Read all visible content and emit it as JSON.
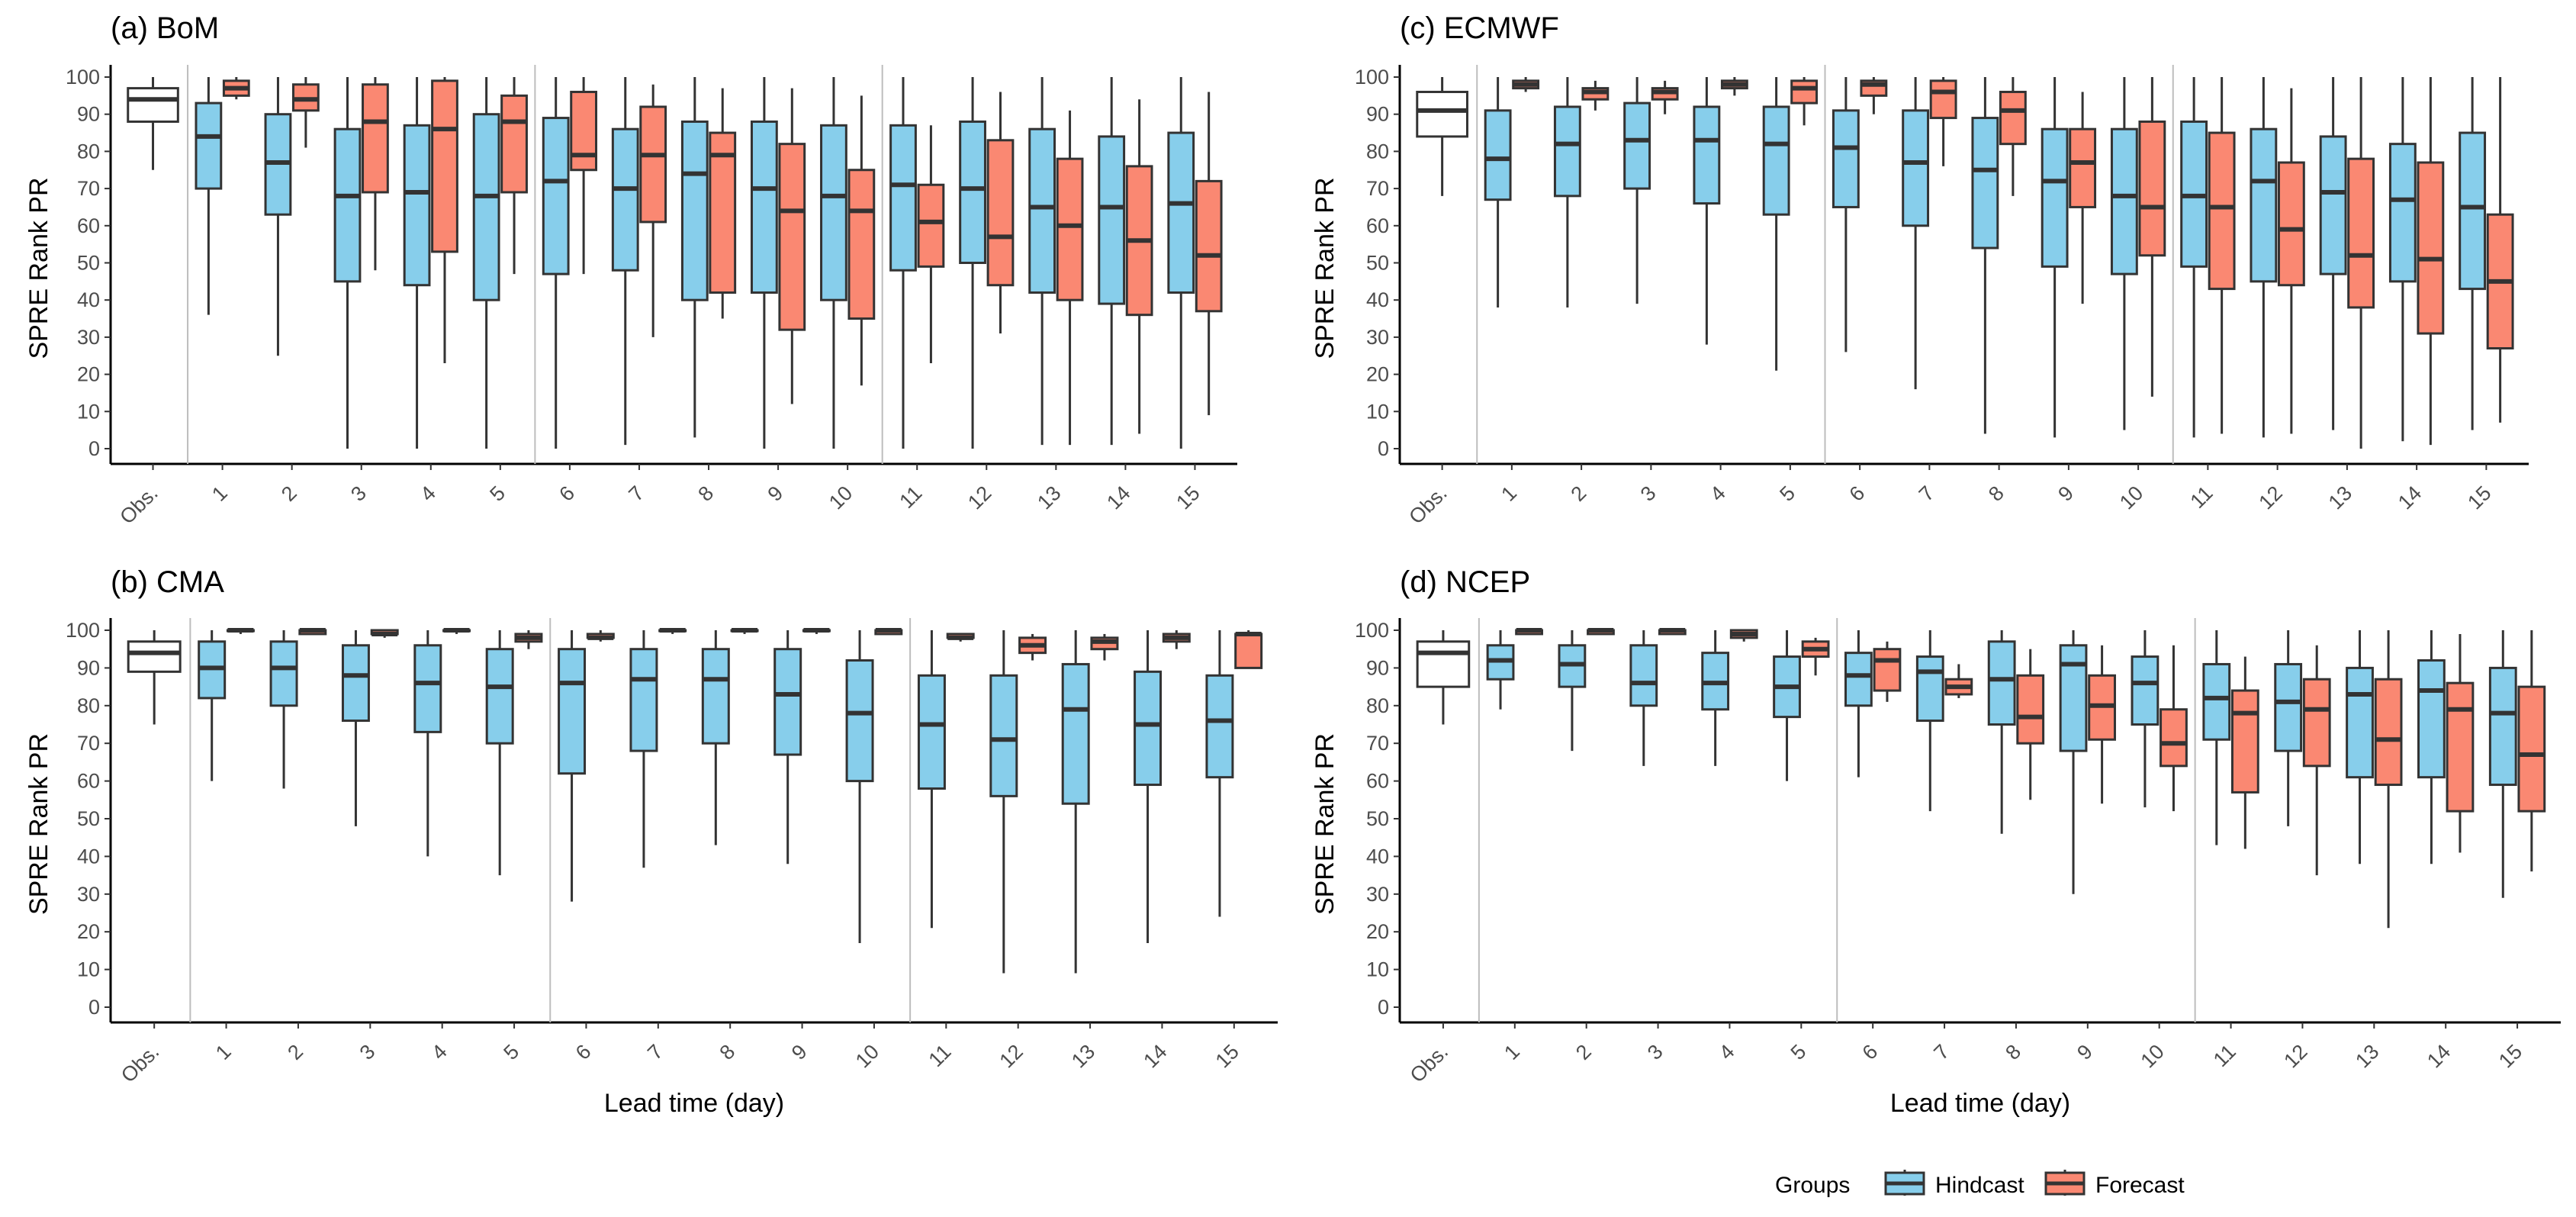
{
  "colors": {
    "hindcast": "#87CEEB",
    "forecast": "#FA8872",
    "obs": "#FFFFFF",
    "stroke": "#333333",
    "separator": "#BDBDBD"
  },
  "shared": {
    "categories": [
      "Obs.",
      "1",
      "2",
      "3",
      "4",
      "5",
      "6",
      "7",
      "8",
      "9",
      "10",
      "11",
      "12",
      "13",
      "14",
      "15"
    ],
    "yticks": [
      "0",
      "10",
      "20",
      "30",
      "40",
      "50",
      "60",
      "70",
      "80",
      "90",
      "100"
    ],
    "ylabel": "SPRE Rank PR",
    "xlabel": "Lead time (day)",
    "legend_title": "Groups",
    "legend_items": [
      "Hindcast",
      "Forecast"
    ]
  },
  "chart_data": [
    {
      "type": "boxplot",
      "title": "(a) BoM",
      "ylim": [
        0,
        100
      ],
      "obs": [
        75,
        88,
        94,
        97,
        100
      ],
      "hindcast": [
        [
          36,
          70,
          84,
          93,
          100
        ],
        [
          25,
          63,
          77,
          90,
          100
        ],
        [
          0,
          45,
          68,
          86,
          100
        ],
        [
          0,
          44,
          69,
          87,
          100
        ],
        [
          0,
          40,
          68,
          90,
          100
        ],
        [
          0,
          47,
          72,
          89,
          100
        ],
        [
          1,
          48,
          70,
          86,
          100
        ],
        [
          3,
          40,
          74,
          88,
          100
        ],
        [
          0,
          42,
          70,
          88,
          100
        ],
        [
          0,
          40,
          68,
          87,
          100
        ],
        [
          0,
          48,
          71,
          87,
          100
        ],
        [
          0,
          50,
          70,
          88,
          100
        ],
        [
          1,
          42,
          65,
          86,
          100
        ],
        [
          1,
          39,
          65,
          84,
          100
        ],
        [
          0,
          42,
          66,
          85,
          100
        ]
      ],
      "forecast": [
        [
          94,
          95,
          97,
          99,
          100
        ],
        [
          81,
          91,
          94,
          98,
          100
        ],
        [
          48,
          69,
          88,
          98,
          100
        ],
        [
          23,
          53,
          86,
          99,
          100
        ],
        [
          47,
          69,
          88,
          95,
          100
        ],
        [
          47,
          75,
          79,
          96,
          100
        ],
        [
          30,
          61,
          79,
          92,
          98
        ],
        [
          35,
          42,
          79,
          85,
          97
        ],
        [
          12,
          32,
          64,
          82,
          97
        ],
        [
          17,
          35,
          64,
          75,
          95
        ],
        [
          23,
          49,
          61,
          71,
          87
        ],
        [
          31,
          44,
          57,
          83,
          96
        ],
        [
          1,
          40,
          60,
          78,
          91
        ],
        [
          4,
          36,
          56,
          76,
          94
        ],
        [
          9,
          37,
          52,
          72,
          96
        ]
      ]
    },
    {
      "type": "boxplot",
      "title": "(b) CMA",
      "ylim": [
        0,
        100
      ],
      "obs": [
        75,
        89,
        94,
        97,
        100
      ],
      "hindcast": [
        [
          60,
          82,
          90,
          97,
          100
        ],
        [
          58,
          80,
          90,
          97,
          100
        ],
        [
          48,
          76,
          88,
          96,
          100
        ],
        [
          40,
          73,
          86,
          96,
          100
        ],
        [
          35,
          70,
          85,
          95,
          100
        ],
        [
          28,
          62,
          86,
          95,
          100
        ],
        [
          37,
          68,
          87,
          95,
          100
        ],
        [
          43,
          70,
          87,
          95,
          100
        ],
        [
          38,
          67,
          83,
          95,
          100
        ],
        [
          17,
          60,
          78,
          92,
          100
        ],
        [
          21,
          58,
          75,
          88,
          100
        ],
        [
          9,
          56,
          71,
          88,
          100
        ],
        [
          9,
          54,
          79,
          91,
          100
        ],
        [
          17,
          59,
          75,
          89,
          100
        ],
        [
          24,
          61,
          76,
          88,
          100
        ]
      ],
      "forecast": [
        [
          99,
          100,
          100,
          100,
          100
        ],
        [
          99,
          99,
          100,
          100,
          100
        ],
        [
          98,
          99,
          99,
          100,
          100
        ],
        [
          99,
          100,
          100,
          100,
          100
        ],
        [
          95,
          97,
          98,
          99,
          100
        ],
        [
          97,
          98,
          98,
          99,
          100
        ],
        [
          99,
          100,
          100,
          100,
          100
        ],
        [
          99,
          100,
          100,
          100,
          100
        ],
        [
          99,
          100,
          100,
          100,
          100
        ],
        [
          99,
          99,
          100,
          100,
          100
        ],
        [
          97,
          98,
          98,
          99,
          99
        ],
        [
          92,
          94,
          96,
          98,
          99
        ],
        [
          92,
          95,
          97,
          98,
          99
        ],
        [
          95,
          97,
          98,
          99,
          100
        ],
        [
          90,
          90,
          99,
          99,
          100
        ]
      ]
    },
    {
      "type": "boxplot",
      "title": "(c) ECMWF",
      "ylim": [
        0,
        100
      ],
      "obs": [
        68,
        84,
        91,
        96,
        100
      ],
      "hindcast": [
        [
          38,
          67,
          78,
          91,
          100
        ],
        [
          38,
          68,
          82,
          92,
          100
        ],
        [
          39,
          70,
          83,
          93,
          100
        ],
        [
          28,
          66,
          83,
          92,
          100
        ],
        [
          21,
          63,
          82,
          92,
          100
        ],
        [
          26,
          65,
          81,
          91,
          100
        ],
        [
          16,
          60,
          77,
          91,
          100
        ],
        [
          4,
          54,
          75,
          89,
          100
        ],
        [
          3,
          49,
          72,
          86,
          100
        ],
        [
          5,
          47,
          68,
          86,
          100
        ],
        [
          3,
          49,
          68,
          88,
          100
        ],
        [
          3,
          45,
          72,
          86,
          100
        ],
        [
          5,
          47,
          69,
          84,
          100
        ],
        [
          2,
          45,
          67,
          82,
          100
        ],
        [
          5,
          43,
          65,
          85,
          100
        ]
      ],
      "forecast": [
        [
          96,
          97,
          98,
          99,
          100
        ],
        [
          91,
          94,
          96,
          97,
          99
        ],
        [
          90,
          94,
          96,
          97,
          99
        ],
        [
          95,
          97,
          98,
          99,
          100
        ],
        [
          87,
          93,
          97,
          99,
          100
        ],
        [
          90,
          95,
          98,
          99,
          100
        ],
        [
          76,
          89,
          96,
          99,
          100
        ],
        [
          68,
          82,
          91,
          96,
          100
        ],
        [
          39,
          65,
          77,
          86,
          96
        ],
        [
          14,
          52,
          65,
          88,
          100
        ],
        [
          4,
          43,
          65,
          85,
          100
        ],
        [
          4,
          44,
          59,
          77,
          97
        ],
        [
          0,
          38,
          52,
          78,
          100
        ],
        [
          1,
          31,
          51,
          77,
          100
        ],
        [
          7,
          27,
          45,
          63,
          100
        ]
      ]
    },
    {
      "type": "boxplot",
      "title": "(d) NCEP",
      "ylim": [
        0,
        100
      ],
      "obs": [
        75,
        85,
        94,
        97,
        100
      ],
      "hindcast": [
        [
          79,
          87,
          92,
          96,
          100
        ],
        [
          68,
          85,
          91,
          96,
          100
        ],
        [
          64,
          80,
          86,
          96,
          100
        ],
        [
          64,
          79,
          86,
          94,
          100
        ],
        [
          60,
          77,
          85,
          93,
          100
        ],
        [
          61,
          80,
          88,
          94,
          100
        ],
        [
          52,
          76,
          89,
          93,
          100
        ],
        [
          46,
          75,
          87,
          97,
          100
        ],
        [
          30,
          68,
          91,
          96,
          100
        ],
        [
          53,
          75,
          86,
          93,
          100
        ],
        [
          43,
          71,
          82,
          91,
          100
        ],
        [
          48,
          68,
          81,
          91,
          100
        ],
        [
          38,
          61,
          83,
          90,
          100
        ],
        [
          38,
          61,
          84,
          92,
          100
        ],
        [
          29,
          59,
          78,
          90,
          100
        ]
      ],
      "forecast": [
        [
          99,
          99,
          100,
          100,
          100
        ],
        [
          99,
          99,
          100,
          100,
          100
        ],
        [
          99,
          99,
          100,
          100,
          100
        ],
        [
          97,
          98,
          99,
          100,
          100
        ],
        [
          88,
          93,
          95,
          97,
          98
        ],
        [
          81,
          84,
          92,
          95,
          97
        ],
        [
          82,
          83,
          85,
          87,
          91
        ],
        [
          55,
          70,
          77,
          88,
          95
        ],
        [
          54,
          71,
          80,
          88,
          96
        ],
        [
          52,
          64,
          70,
          79,
          96
        ],
        [
          42,
          57,
          78,
          84,
          93
        ],
        [
          35,
          64,
          79,
          87,
          96
        ],
        [
          21,
          59,
          71,
          87,
          100
        ],
        [
          41,
          52,
          79,
          86,
          99
        ],
        [
          36,
          52,
          67,
          85,
          100
        ]
      ]
    }
  ]
}
